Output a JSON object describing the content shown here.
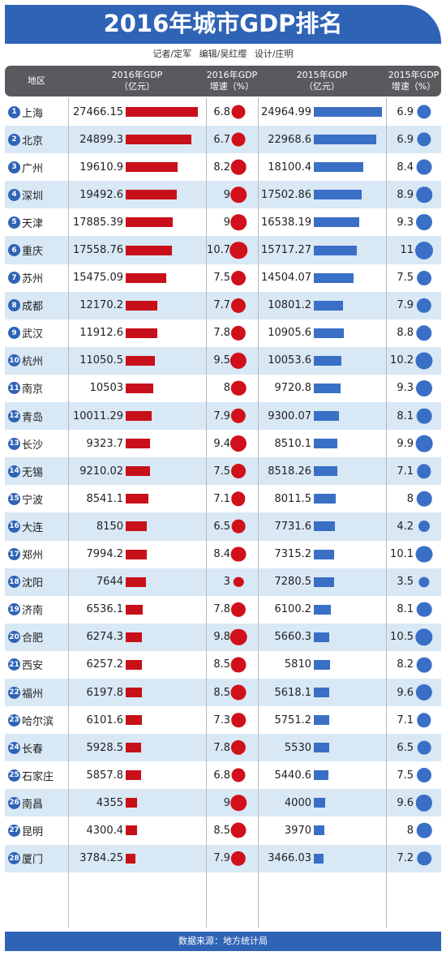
{
  "title": "2016年城市GDP排名",
  "credits": "记者/定军  编辑/吴红缨  设计/庄明",
  "header": {
    "region": "地区",
    "gdp2016": "2016年GDP",
    "gdp2016_unit": "（亿元）",
    "growth2016": "2016年GDP",
    "growth2016_unit": "增速（%）",
    "gdp2015": "2015年GDP",
    "gdp2015_unit": "（亿元）",
    "growth2015": "2015年GDP",
    "growth2015_unit": "增速（%）"
  },
  "footer": "数据来源：地方统计局",
  "colors": {
    "banner": "#2f63b6",
    "red": "#c8101a",
    "blue": "#3a6fc6",
    "alt_row": "#d9e8f5",
    "header_bg": "#595a5e"
  },
  "chart_data": {
    "type": "table",
    "columns": [
      "rank",
      "city",
      "gdp2016",
      "growth2016",
      "gdp2015",
      "growth2015"
    ],
    "rows": [
      {
        "rank": "1",
        "city": "上海",
        "gdp2016": "27466.15",
        "growth2016": "6.8",
        "gdp2015": "24964.99",
        "growth2015": "6.9"
      },
      {
        "rank": "2",
        "city": "北京",
        "gdp2016": "24899.3",
        "growth2016": "6.7",
        "gdp2015": "22968.6",
        "growth2015": "6.9"
      },
      {
        "rank": "3",
        "city": "广州",
        "gdp2016": "19610.9",
        "growth2016": "8.2",
        "gdp2015": "18100.4",
        "growth2015": "8.4"
      },
      {
        "rank": "4",
        "city": "深圳",
        "gdp2016": "19492.6",
        "growth2016": "9",
        "gdp2015": "17502.86",
        "growth2015": "8.9"
      },
      {
        "rank": "5",
        "city": "天津",
        "gdp2016": "17885.39",
        "growth2016": "9",
        "gdp2015": "16538.19",
        "growth2015": "9.3"
      },
      {
        "rank": "6",
        "city": "重庆",
        "gdp2016": "17558.76",
        "growth2016": "10.7",
        "gdp2015": "15717.27",
        "growth2015": "11"
      },
      {
        "rank": "7",
        "city": "苏州",
        "gdp2016": "15475.09",
        "growth2016": "7.5",
        "gdp2015": "14504.07",
        "growth2015": "7.5"
      },
      {
        "rank": "8",
        "city": "成都",
        "gdp2016": "12170.2",
        "growth2016": "7.7",
        "gdp2015": "10801.2",
        "growth2015": "7.9"
      },
      {
        "rank": "9",
        "city": "武汉",
        "gdp2016": "11912.6",
        "growth2016": "7.8",
        "gdp2015": "10905.6",
        "growth2015": "8.8"
      },
      {
        "rank": "10",
        "city": "杭州",
        "gdp2016": "11050.5",
        "growth2016": "9.5",
        "gdp2015": "10053.6",
        "growth2015": "10.2"
      },
      {
        "rank": "11",
        "city": "南京",
        "gdp2016": "10503",
        "growth2016": "8",
        "gdp2015": "9720.8",
        "growth2015": "9.3"
      },
      {
        "rank": "12",
        "city": "青岛",
        "gdp2016": "10011.29",
        "growth2016": "7.9",
        "gdp2015": "9300.07",
        "growth2015": "8.1"
      },
      {
        "rank": "13",
        "city": "长沙",
        "gdp2016": "9323.7",
        "growth2016": "9.4",
        "gdp2015": "8510.1",
        "growth2015": "9.9"
      },
      {
        "rank": "14",
        "city": "无锡",
        "gdp2016": "9210.02",
        "growth2016": "7.5",
        "gdp2015": "8518.26",
        "growth2015": "7.1"
      },
      {
        "rank": "15",
        "city": "宁波",
        "gdp2016": "8541.1",
        "growth2016": "7.1",
        "gdp2015": "8011.5",
        "growth2015": "8"
      },
      {
        "rank": "16",
        "city": "大连",
        "gdp2016": "8150",
        "growth2016": "6.5",
        "gdp2015": "7731.6",
        "growth2015": "4.2"
      },
      {
        "rank": "17",
        "city": "郑州",
        "gdp2016": "7994.2",
        "growth2016": "8.4",
        "gdp2015": "7315.2",
        "growth2015": "10.1"
      },
      {
        "rank": "18",
        "city": "沈阳",
        "gdp2016": "7644",
        "growth2016": "3",
        "gdp2015": "7280.5",
        "growth2015": "3.5"
      },
      {
        "rank": "19",
        "city": "济南",
        "gdp2016": "6536.1",
        "growth2016": "7.8",
        "gdp2015": "6100.2",
        "growth2015": "8.1"
      },
      {
        "rank": "20",
        "city": "合肥",
        "gdp2016": "6274.3",
        "growth2016": "9.8",
        "gdp2015": "5660.3",
        "growth2015": "10.5"
      },
      {
        "rank": "21",
        "city": "西安",
        "gdp2016": "6257.2",
        "growth2016": "8.5",
        "gdp2015": "5810",
        "growth2015": "8.2"
      },
      {
        "rank": "22",
        "city": "福州",
        "gdp2016": "6197.8",
        "growth2016": "8.5",
        "gdp2015": "5618.1",
        "growth2015": "9.6"
      },
      {
        "rank": "23",
        "city": "哈尔滨",
        "gdp2016": "6101.6",
        "growth2016": "7.3",
        "gdp2015": "5751.2",
        "growth2015": "7.1"
      },
      {
        "rank": "24",
        "city": "长春",
        "gdp2016": "5928.5",
        "growth2016": "7.8",
        "gdp2015": "5530",
        "growth2015": "6.5"
      },
      {
        "rank": "25",
        "city": "石家庄",
        "gdp2016": "5857.8",
        "growth2016": "6.8",
        "gdp2015": "5440.6",
        "growth2015": "7.5"
      },
      {
        "rank": "26",
        "city": "南昌",
        "gdp2016": "4355",
        "growth2016": "9",
        "gdp2015": "4000",
        "growth2015": "9.6"
      },
      {
        "rank": "27",
        "city": "昆明",
        "gdp2016": "4300.4",
        "growth2016": "8.5",
        "gdp2015": "3970",
        "growth2015": "8"
      },
      {
        "rank": "28",
        "city": "厦门",
        "gdp2016": "3784.25",
        "growth2016": "7.9",
        "gdp2015": "3466.03",
        "growth2015": "7.2"
      }
    ]
  }
}
